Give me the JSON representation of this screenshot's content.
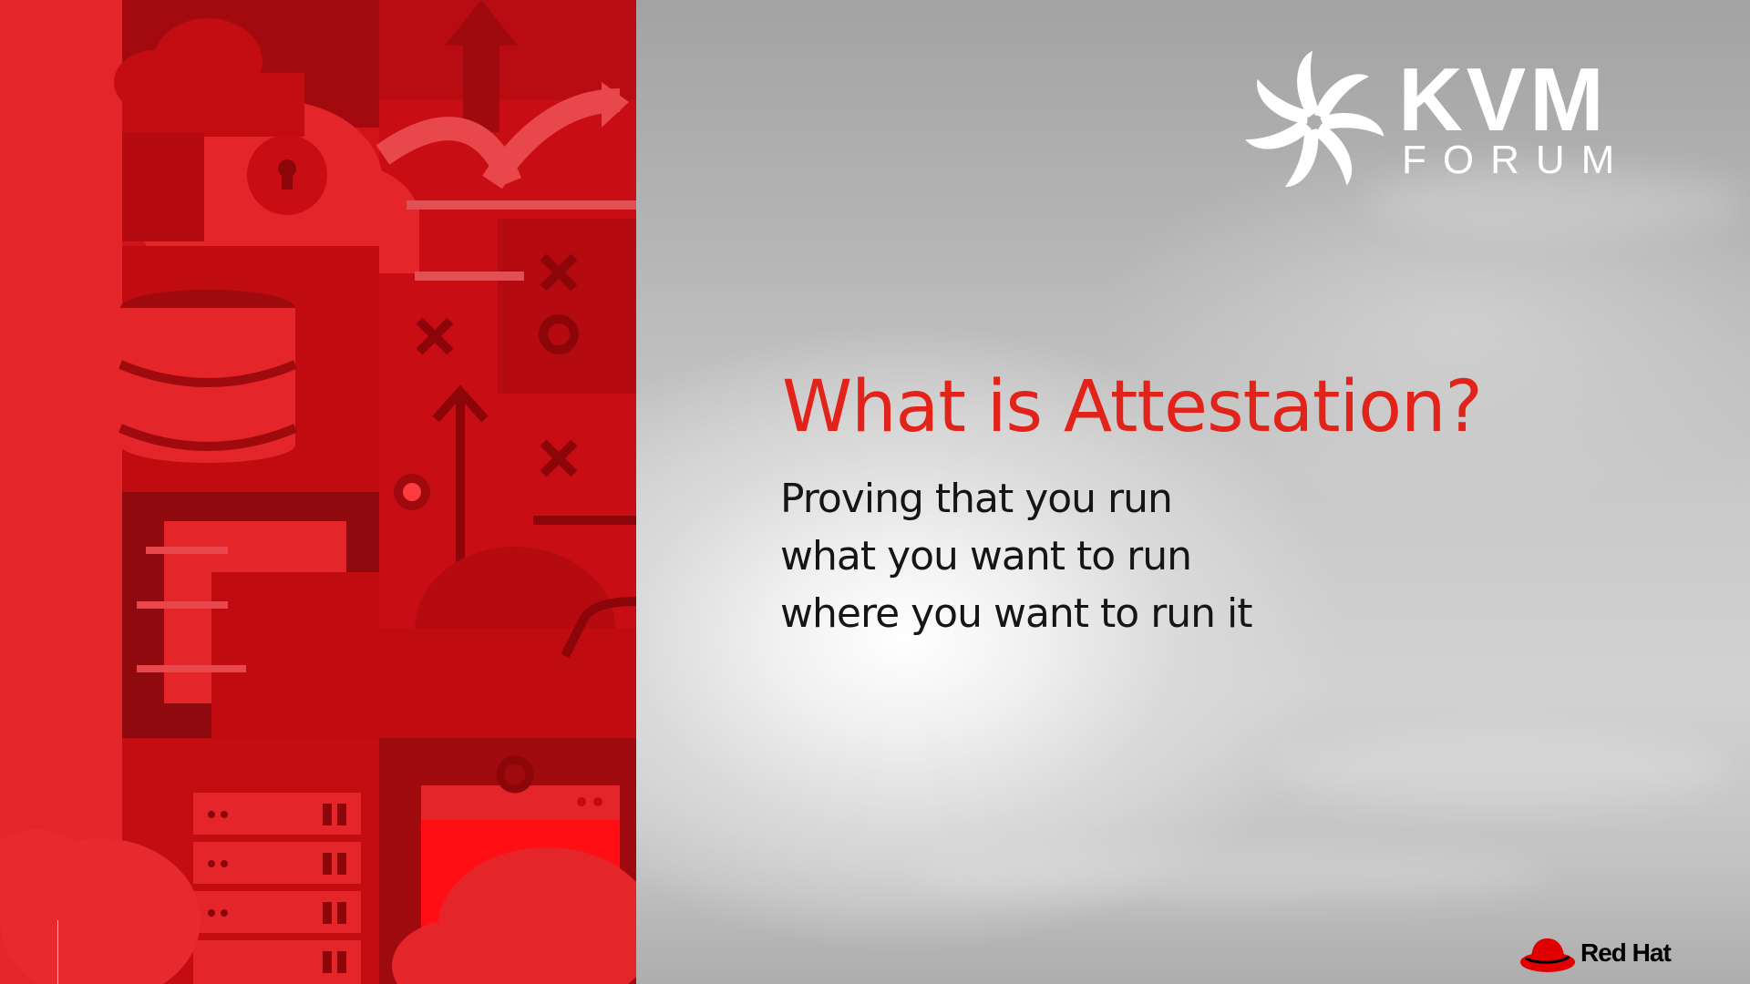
{
  "slide": {
    "title": "What is Attestation?",
    "lines": [
      "Proving that you run",
      "what you want to run",
      "where you want to run it"
    ]
  },
  "logo": {
    "primary": "KVM",
    "secondary": "FORUM",
    "icon": "pinwheel-icon"
  },
  "brand": {
    "name": "Red Hat",
    "icon": "red-fedora-hat-icon"
  },
  "colors": {
    "accent": "#e2231a",
    "panel_red": "#e4252a",
    "dark_red": "#9e0a0e",
    "text": "#151515"
  }
}
